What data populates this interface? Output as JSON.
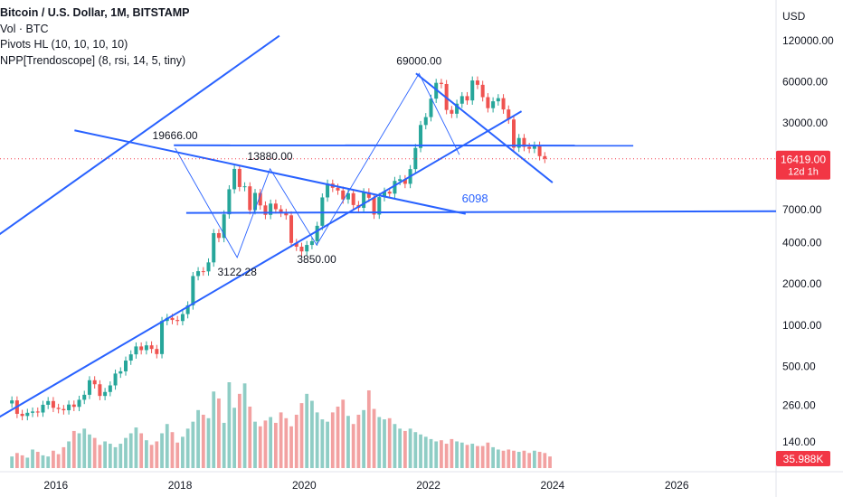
{
  "header": {
    "title": "Bitcoin / U.S. Dollar, 1M, BITSTAMP",
    "indicators": [
      "Vol · BTC",
      "Pivots HL (10, 10, 10, 10)",
      "NPP[Trendoscope] (8, rsi, 14, 5, tiny)"
    ]
  },
  "colors": {
    "up": "#26a69a",
    "down": "#ef5350",
    "vol_up": "#8fcdc5",
    "vol_down": "#f2a1a1",
    "trendline": "#2962ff",
    "price_tag": "#f23645",
    "axis_text": "#131722"
  },
  "chart_data": {
    "type": "candlestick",
    "currency_label": "USD",
    "y_scale": "log",
    "ylim": [
      85,
      220000
    ],
    "xlim": [
      2015.1,
      2027.6
    ],
    "y_ticks": [
      {
        "value": 120000,
        "label": "120000.00"
      },
      {
        "value": 60000,
        "label": "60000.00"
      },
      {
        "value": 30000,
        "label": "30000.00"
      },
      {
        "value": 7000,
        "label": "7000.00"
      },
      {
        "value": 4000,
        "label": "4000.00"
      },
      {
        "value": 2000,
        "label": "2000.00"
      },
      {
        "value": 1000,
        "label": "1000.00"
      },
      {
        "value": 500,
        "label": "500.00"
      },
      {
        "value": 260,
        "label": "260.00"
      },
      {
        "value": 140,
        "label": "140.00"
      }
    ],
    "x_ticks": [
      {
        "value": 2016,
        "label": "2016"
      },
      {
        "value": 2018,
        "label": "2018"
      },
      {
        "value": 2020,
        "label": "2020"
      },
      {
        "value": 2022,
        "label": "2022"
      },
      {
        "value": 2024,
        "label": "2024"
      },
      {
        "value": 2026,
        "label": "2026"
      }
    ],
    "closes": [
      282,
      225,
      217,
      229,
      234,
      230,
      262,
      279,
      249,
      244,
      239,
      263,
      253,
      285,
      310,
      396,
      370,
      304,
      325,
      363,
      443,
      460,
      551,
      612,
      699,
      657,
      712,
      670,
      615,
      1073,
      1130,
      1091,
      1072,
      1205,
      1396,
      2285,
      2480,
      2470,
      2875,
      4703,
      4338,
      6449,
      9838,
      13850,
      10221,
      10335,
      6926,
      9245,
      7495,
      6391,
      7729,
      7030,
      6626,
      6343,
      3990,
      3742,
      3457,
      3854,
      4105,
      5320,
      8574,
      10817,
      10086,
      9630,
      8293,
      9199,
      7546,
      7193,
      9350,
      8523,
      6424,
      8624,
      9448,
      9137,
      11323,
      11655,
      10776,
      13804,
      19700,
      28990,
      33114,
      45137,
      58918,
      57750,
      37332,
      35040,
      41490,
      47100,
      43824,
      61318,
      57005,
      46306,
      38483,
      43185,
      45528,
      37644,
      31792,
      19784,
      23296,
      20050,
      19423,
      20495,
      17165,
      16419
    ],
    "volumes": [
      1.0,
      1.3,
      1.1,
      0.9,
      1.6,
      1.4,
      1.1,
      1.0,
      1.5,
      1.2,
      1.8,
      2.3,
      3.2,
      3.0,
      3.4,
      2.9,
      2.6,
      2.0,
      2.3,
      2.1,
      1.8,
      2.1,
      2.6,
      3.0,
      3.5,
      3.0,
      2.4,
      2.0,
      2.3,
      3.0,
      3.8,
      3.1,
      2.2,
      2.7,
      3.4,
      4.0,
      5.0,
      4.6,
      4.3,
      6.6,
      6.0,
      3.9,
      7.4,
      5.2,
      6.4,
      7.3,
      5.3,
      4.0,
      3.6,
      4.1,
      4.4,
      3.9,
      4.8,
      4.3,
      3.6,
      4.6,
      5.6,
      6.4,
      5.8,
      4.8,
      4.2,
      4.0,
      4.8,
      5.3,
      5.9,
      4.5,
      3.8,
      4.6,
      5.0,
      6.7,
      5.1,
      4.4,
      4.2,
      4.3,
      3.8,
      3.4,
      3.2,
      3.4,
      3.1,
      2.9,
      2.7,
      2.5,
      2.3,
      2.4,
      2.1,
      2.5,
      2.3,
      2.2,
      2.0,
      2.1,
      1.9,
      1.9,
      2.2,
      1.8,
      1.6,
      1.5,
      1.6,
      1.5,
      1.4,
      1.5,
      1.3,
      1.5,
      1.4,
      1.3,
      1.0
    ],
    "start_date": "2015-04",
    "trendlines": [
      [
        {
          "t": 2014.9,
          "p": 190
        },
        {
          "t": 2023.5,
          "p": 36500
        }
      ],
      [
        {
          "t": 2014.9,
          "p": 4000
        },
        {
          "t": 2019.6,
          "p": 130000
        }
      ],
      [
        {
          "t": 2016.3,
          "p": 26500
        },
        {
          "t": 2022.6,
          "p": 6500
        }
      ],
      [
        {
          "t": 2021.8,
          "p": 69000
        },
        {
          "t": 2024.0,
          "p": 11000
        }
      ],
      [
        {
          "t": 2017.9,
          "p": 20600
        },
        {
          "t": 2025.3,
          "p": 20500
        }
      ],
      [
        {
          "t": 2018.1,
          "p": 6600
        },
        {
          "t": 2027.6,
          "p": 6800
        }
      ]
    ],
    "pivots": [
      {
        "t": 2017.92,
        "p": 19666
      },
      {
        "t": 2018.92,
        "p": 3122.28
      },
      {
        "t": 2019.45,
        "p": 13880
      },
      {
        "t": 2020.2,
        "p": 3850
      },
      {
        "t": 2021.85,
        "p": 69000
      },
      {
        "t": 2022.5,
        "p": 17600
      }
    ],
    "annotations": [
      {
        "t": 2017.92,
        "p": 19666,
        "text": "19666.00",
        "pos": "above"
      },
      {
        "t": 2018.92,
        "p": 3122.28,
        "text": "3122.28",
        "pos": "below"
      },
      {
        "t": 2019.45,
        "p": 13880,
        "text": "13880.00",
        "pos": "above"
      },
      {
        "t": 2020.2,
        "p": 3850,
        "text": "3850.00",
        "pos": "below"
      },
      {
        "t": 2021.85,
        "p": 69000,
        "text": "69000.00",
        "pos": "above"
      },
      {
        "t": 2022.75,
        "p": 7000,
        "text": "6098",
        "pos": "blue"
      }
    ],
    "current_price": {
      "value": 16419,
      "label": "16419.00",
      "countdown": "12d 1h"
    },
    "volume_label": "35.988K"
  }
}
